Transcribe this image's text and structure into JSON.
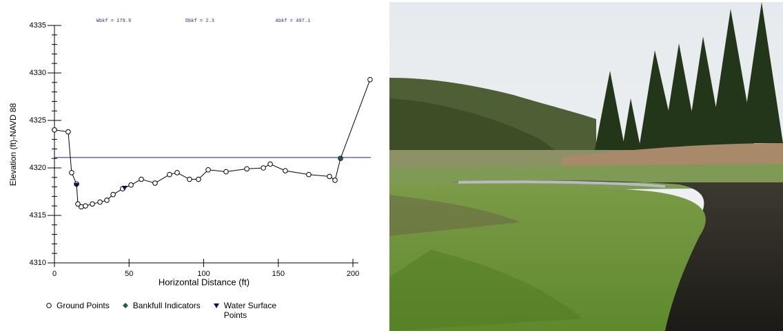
{
  "chart_data": {
    "type": "line",
    "y_label": "Elevation (ft)-NAVD 88",
    "x_label": "Horizontal Distance (ft)",
    "annotations": [
      "Wbkf = 179.9",
      "Dbkf = 2.3",
      "Abkf = 407.1"
    ],
    "bankfull_elevation": 4321.1,
    "bankfull_color": "#1a1a8a",
    "xlim": [
      0,
      212
    ],
    "xticks": [
      0,
      50,
      100,
      150,
      200
    ],
    "ylim": [
      4310,
      4335
    ],
    "yticks": [
      4310,
      4315,
      4320,
      4325,
      4330,
      4335
    ],
    "y_minor_ticks": [
      4311,
      4312,
      4313,
      4314,
      4316,
      4317,
      4318,
      4319,
      4321,
      4322,
      4323,
      4324,
      4326,
      4327,
      4328,
      4329,
      4331,
      4332,
      4333,
      4334
    ],
    "series": [
      {
        "name": "Ground Points",
        "color": "#000000",
        "marker": "circle",
        "x": [
          0,
          9.2,
          11.5,
          14.8,
          15.7,
          18,
          20.8,
          25.4,
          30.5,
          35.1,
          39.3,
          45.7,
          51.3,
          58.2,
          67.4,
          77.1,
          82.2,
          90.5,
          96.5,
          103,
          115,
          128.9,
          140,
          144.6,
          154.7,
          170.4,
          184.3,
          188,
          191.7,
          211.5
        ],
        "values": [
          4324.0,
          4323.8,
          4319.5,
          4318.3,
          4316.2,
          4315.9,
          4316.0,
          4316.2,
          4316.4,
          4316.6,
          4317.2,
          4317.8,
          4318.2,
          4318.8,
          4318.4,
          4319.3,
          4319.5,
          4318.8,
          4318.8,
          4319.8,
          4319.6,
          4319.9,
          4320.0,
          4320.4,
          4319.7,
          4319.3,
          4319.1,
          4318.7,
          4321.0,
          4329.3
        ]
      },
      {
        "name": "Bankfull Indicators",
        "color": "#1e5e3a",
        "marker": "diamond",
        "x": [
          191.7
        ],
        "values": [
          4321.0
        ]
      },
      {
        "name": "Water Surface Points",
        "color": "#10104a",
        "marker": "triangle",
        "x": [
          14.8,
          47
        ],
        "values": [
          4318.2,
          4317.9
        ]
      }
    ]
  }
}
